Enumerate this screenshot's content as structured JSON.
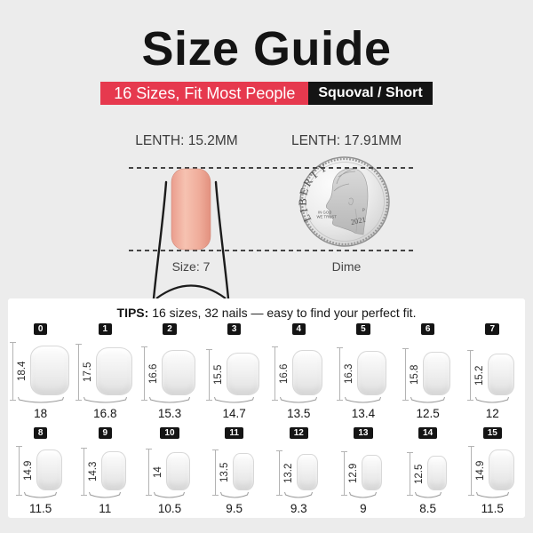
{
  "colors": {
    "background": "#ececec",
    "panel": "#ffffff",
    "accent_red": "#e6394e",
    "tag_black": "#141414",
    "nail_pink": "#f3b7a6"
  },
  "header": {
    "title": "Size Guide",
    "subtitle": "16 Sizes, Fit Most People",
    "shape_tag": "Squoval / Short"
  },
  "comparison": {
    "nail_length_label": "LENTH: 15.2MM",
    "dime_length_label": "LENTH: 17.91MM",
    "nail_caption": "Size: 7",
    "dime_caption": "Dime",
    "coin": {
      "liberty": "LIBERTY",
      "motto_line1": "IN GOD",
      "motto_line2": "WE TRUST",
      "mint_mark": "P",
      "year": "2021"
    }
  },
  "tips": {
    "label": "TIPS:",
    "text": " 16 sizes, 32 nails — easy to find your perfect fit."
  },
  "chart_data": {
    "type": "table",
    "title": "Size Guide — 16 sizes, 32 nails",
    "columns": [
      "size",
      "length_mm",
      "width_mm"
    ],
    "sizes": [
      {
        "size": 0,
        "length_mm": 18.4,
        "width_mm": 18
      },
      {
        "size": 1,
        "length_mm": 17.5,
        "width_mm": 16.8
      },
      {
        "size": 2,
        "length_mm": 16.6,
        "width_mm": 15.3
      },
      {
        "size": 3,
        "length_mm": 15.5,
        "width_mm": 14.7
      },
      {
        "size": 4,
        "length_mm": 16.6,
        "width_mm": 13.5
      },
      {
        "size": 5,
        "length_mm": 16.3,
        "width_mm": 13.4
      },
      {
        "size": 6,
        "length_mm": 15.8,
        "width_mm": 12.5
      },
      {
        "size": 7,
        "length_mm": 15.2,
        "width_mm": 12
      },
      {
        "size": 8,
        "length_mm": 14.9,
        "width_mm": 11.5
      },
      {
        "size": 9,
        "length_mm": 14.3,
        "width_mm": 11
      },
      {
        "size": 10,
        "length_mm": 14,
        "width_mm": 10.5
      },
      {
        "size": 11,
        "length_mm": 13.5,
        "width_mm": 9.5
      },
      {
        "size": 12,
        "length_mm": 13.2,
        "width_mm": 9.3
      },
      {
        "size": 13,
        "length_mm": 12.9,
        "width_mm": 9
      },
      {
        "size": 14,
        "length_mm": 12.5,
        "width_mm": 8.5
      },
      {
        "size": 15,
        "length_mm": 14.9,
        "width_mm": 11.5
      }
    ]
  }
}
